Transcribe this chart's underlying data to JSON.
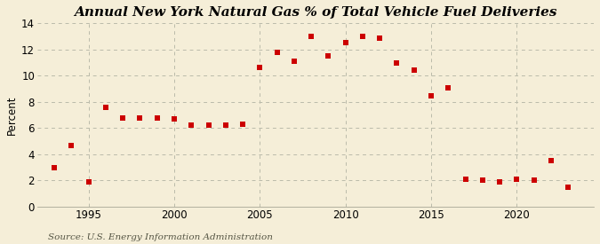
{
  "title": "Annual New York Natural Gas % of Total Vehicle Fuel Deliveries",
  "ylabel": "Percent",
  "source": "Source: U.S. Energy Information Administration",
  "years": [
    1993,
    1994,
    1995,
    1996,
    1997,
    1998,
    1999,
    2000,
    2001,
    2002,
    2003,
    2004,
    2005,
    2006,
    2007,
    2008,
    2009,
    2010,
    2011,
    2012,
    2013,
    2014,
    2015,
    2016,
    2017,
    2018,
    2019,
    2020,
    2021,
    2022,
    2023
  ],
  "values": [
    3.0,
    4.7,
    1.9,
    7.6,
    6.8,
    6.8,
    6.8,
    6.7,
    6.2,
    6.2,
    6.2,
    6.3,
    10.6,
    11.8,
    11.1,
    13.0,
    11.5,
    12.5,
    13.0,
    12.9,
    11.0,
    10.4,
    8.5,
    9.1,
    2.1,
    2.0,
    1.9,
    2.1,
    2.0,
    3.5,
    1.5
  ],
  "marker_color": "#cc0000",
  "marker_size": 4,
  "background_color": "#f5eed8",
  "plot_bg_color": "#f5eed8",
  "grid_color": "#bbbbaa",
  "xlim": [
    1992,
    2024.5
  ],
  "ylim": [
    0,
    14
  ],
  "yticks": [
    0,
    2,
    4,
    6,
    8,
    10,
    12,
    14
  ],
  "xticks": [
    1995,
    2000,
    2005,
    2010,
    2015,
    2020
  ],
  "vgrid_positions": [
    1995,
    2000,
    2005,
    2010,
    2015,
    2020
  ],
  "title_fontsize": 11,
  "axis_fontsize": 8.5,
  "source_fontsize": 7.5
}
